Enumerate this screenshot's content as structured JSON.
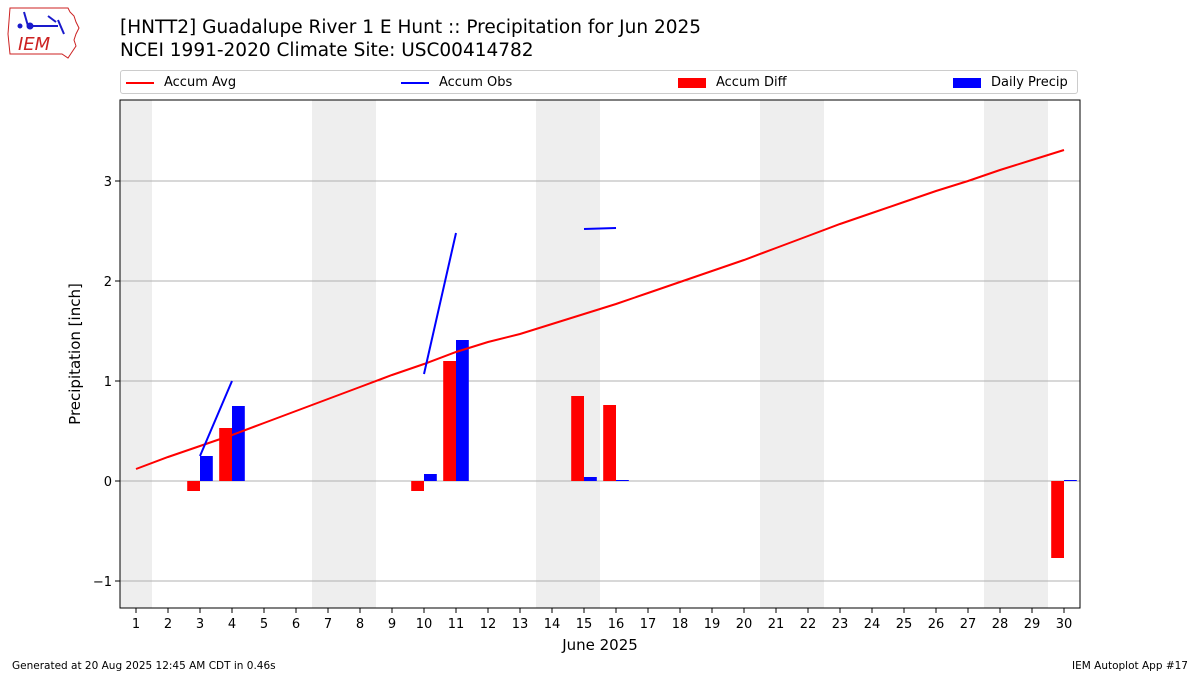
{
  "header": {
    "title_line1": "[HNTT2] Guadalupe River 1 E Hunt :: Precipitation for Jun 2025",
    "title_line2": "NCEI 1991-2020 Climate Site: USC00414782"
  },
  "logo": {
    "text": "IEM",
    "outline_color": "#cc2222",
    "glyph_color": "#1a1acc"
  },
  "footer": {
    "generated": "Generated at 20 Aug 2025 12:45 AM CDT in 0.46s",
    "app": "IEM Autoplot App #17"
  },
  "chart_data": {
    "type": "bar",
    "title": "[HNTT2] Guadalupe River 1 E Hunt :: Precipitation for Jun 2025",
    "subtitle": "NCEI 1991-2020 Climate Site: USC00414782",
    "xlabel": "June 2025",
    "ylabel": "Precipitation [inch]",
    "xlim": [
      0.5,
      30.5
    ],
    "ylim": [
      -1.27,
      3.81
    ],
    "yticks": [
      -1,
      0,
      1,
      2,
      3
    ],
    "ytick_labels": [
      "−1",
      "0",
      "1",
      "2",
      "3"
    ],
    "x": [
      1,
      2,
      3,
      4,
      5,
      6,
      7,
      8,
      9,
      10,
      11,
      12,
      13,
      14,
      15,
      16,
      17,
      18,
      19,
      20,
      21,
      22,
      23,
      24,
      25,
      26,
      27,
      28,
      29,
      30
    ],
    "weekend_days": [
      1,
      7,
      8,
      14,
      15,
      21,
      22,
      28,
      29
    ],
    "grid": "y",
    "legend_placement": "top",
    "colors": {
      "avg": "#ff0000",
      "obs": "#0000ff",
      "diff": "#ff0000",
      "daily": "#0000ff",
      "weekend": "#eeeeee",
      "grid": "#b0b0b0"
    },
    "legend": [
      {
        "label": "Accum Avg",
        "kind": "line",
        "color": "#ff0000"
      },
      {
        "label": "Accum Obs",
        "kind": "line",
        "color": "#0000ff"
      },
      {
        "label": "Accum Diff",
        "kind": "bar",
        "color": "#ff0000"
      },
      {
        "label": "Daily Precip",
        "kind": "bar",
        "color": "#0000ff"
      }
    ],
    "series": [
      {
        "name": "Accum Avg",
        "type": "line",
        "values": [
          0.12,
          0.24,
          0.35,
          0.46,
          0.58,
          0.7,
          0.82,
          0.94,
          1.06,
          1.17,
          1.29,
          1.39,
          1.47,
          1.57,
          1.67,
          1.77,
          1.88,
          1.99,
          2.1,
          2.21,
          2.33,
          2.45,
          2.57,
          2.68,
          2.79,
          2.9,
          3.0,
          3.11,
          3.21,
          3.31
        ]
      },
      {
        "name": "Accum Obs",
        "type": "line",
        "values": [
          null,
          null,
          0.25,
          1.0,
          null,
          null,
          null,
          null,
          null,
          1.07,
          2.48,
          null,
          null,
          null,
          2.52,
          2.53,
          null,
          null,
          null,
          null,
          null,
          null,
          null,
          null,
          null,
          null,
          null,
          null,
          null,
          null
        ]
      },
      {
        "name": "Accum Diff",
        "type": "bar",
        "values": [
          null,
          null,
          -0.1,
          0.53,
          null,
          null,
          null,
          null,
          null,
          -0.1,
          1.2,
          null,
          null,
          null,
          0.85,
          0.76,
          null,
          null,
          null,
          null,
          null,
          null,
          null,
          null,
          null,
          null,
          null,
          null,
          null,
          -0.77
        ]
      },
      {
        "name": "Daily Precip",
        "type": "bar",
        "values": [
          null,
          null,
          0.25,
          0.75,
          null,
          null,
          null,
          null,
          null,
          0.07,
          1.41,
          null,
          null,
          null,
          0.04,
          0.01,
          null,
          null,
          null,
          null,
          null,
          null,
          null,
          null,
          null,
          null,
          null,
          null,
          null,
          0.01
        ]
      }
    ]
  }
}
